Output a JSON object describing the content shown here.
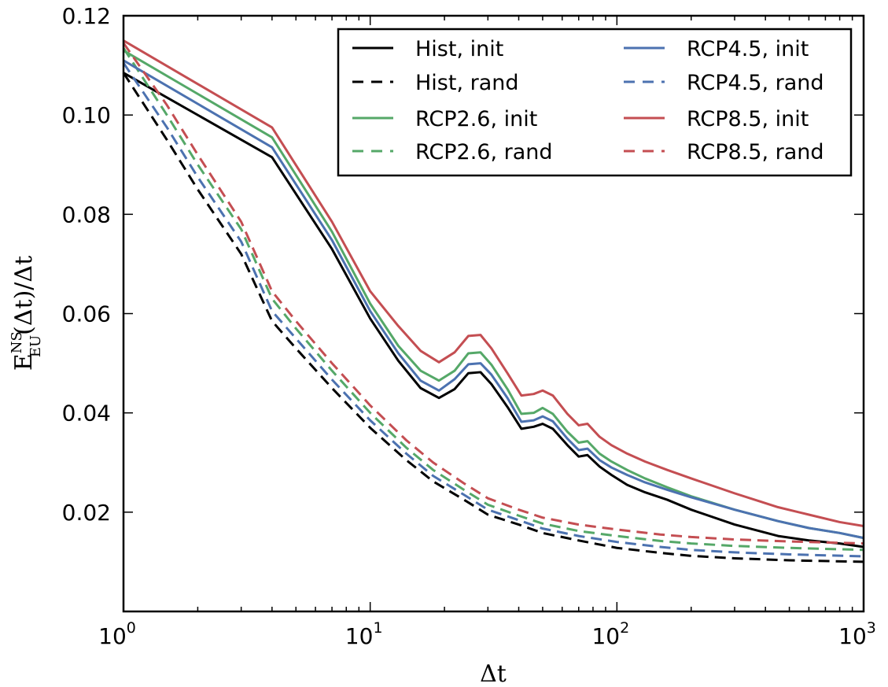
{
  "chart_data": {
    "type": "line",
    "xscale": "log",
    "xlim": [
      1,
      1000
    ],
    "ylim": [
      0,
      0.12
    ],
    "grid": false,
    "legend_position": "top-right",
    "legend_columns": 2,
    "x_tick_labels": [
      {
        "value": 1,
        "base": "10",
        "exp": "0"
      },
      {
        "value": 10,
        "base": "10",
        "exp": "1"
      },
      {
        "value": 100,
        "base": "10",
        "exp": "2"
      },
      {
        "value": 1000,
        "base": "10",
        "exp": "3"
      }
    ],
    "y_ticks": [
      {
        "value": 0.02,
        "label": "0.02"
      },
      {
        "value": 0.04,
        "label": "0.04"
      },
      {
        "value": 0.06,
        "label": "0.06"
      },
      {
        "value": 0.08,
        "label": "0.08"
      },
      {
        "value": 0.1,
        "label": "0.10"
      },
      {
        "value": 0.12,
        "label": "0.12"
      }
    ],
    "xlabel": "Δt",
    "ylabel": {
      "main": "E",
      "sup": "NS",
      "sub": "EU",
      "rest": "(Δt)/Δt"
    },
    "series": [
      {
        "name": "Hist, init",
        "color": "#000000",
        "dash": "solid",
        "points": [
          [
            1,
            0.1085
          ],
          [
            4,
            0.0915
          ],
          [
            7,
            0.073
          ],
          [
            10,
            0.059
          ],
          [
            13,
            0.0505
          ],
          [
            16,
            0.045
          ],
          [
            19,
            0.043
          ],
          [
            22,
            0.0448
          ],
          [
            25,
            0.048
          ],
          [
            28,
            0.0482
          ],
          [
            31,
            0.0458
          ],
          [
            36,
            0.0412
          ],
          [
            41,
            0.0368
          ],
          [
            46,
            0.0372
          ],
          [
            50,
            0.0378
          ],
          [
            55,
            0.0368
          ],
          [
            63,
            0.0335
          ],
          [
            70,
            0.0312
          ],
          [
            76,
            0.0315
          ],
          [
            85,
            0.0292
          ],
          [
            95,
            0.0275
          ],
          [
            110,
            0.0255
          ],
          [
            130,
            0.024
          ],
          [
            160,
            0.0225
          ],
          [
            200,
            0.0205
          ],
          [
            300,
            0.0175
          ],
          [
            450,
            0.0152
          ],
          [
            600,
            0.0143
          ],
          [
            800,
            0.0137
          ],
          [
            1000,
            0.013
          ]
        ]
      },
      {
        "name": "Hist, rand",
        "color": "#000000",
        "dash": "dashed",
        "points": [
          [
            1,
            0.1085
          ],
          [
            1.5,
            0.095
          ],
          [
            2,
            0.085
          ],
          [
            3,
            0.072
          ],
          [
            4,
            0.0585
          ],
          [
            5,
            0.053
          ],
          [
            7,
            0.045
          ],
          [
            10,
            0.037
          ],
          [
            14,
            0.0305
          ],
          [
            18,
            0.0262
          ],
          [
            24,
            0.0225
          ],
          [
            30,
            0.0195
          ],
          [
            40,
            0.0175
          ],
          [
            50,
            0.0158
          ],
          [
            70,
            0.0143
          ],
          [
            100,
            0.0128
          ],
          [
            150,
            0.0118
          ],
          [
            200,
            0.0112
          ],
          [
            300,
            0.0107
          ],
          [
            500,
            0.0103
          ],
          [
            1000,
            0.01
          ]
        ]
      },
      {
        "name": "RCP2.6, init",
        "color": "#55a868",
        "dash": "solid",
        "points": [
          [
            1,
            0.113
          ],
          [
            4,
            0.0955
          ],
          [
            7,
            0.0765
          ],
          [
            10,
            0.062
          ],
          [
            13,
            0.0535
          ],
          [
            16,
            0.0485
          ],
          [
            19,
            0.0465
          ],
          [
            22,
            0.0485
          ],
          [
            25,
            0.052
          ],
          [
            28,
            0.0522
          ],
          [
            31,
            0.0497
          ],
          [
            36,
            0.0448
          ],
          [
            41,
            0.0398
          ],
          [
            46,
            0.04
          ],
          [
            50,
            0.041
          ],
          [
            55,
            0.0398
          ],
          [
            63,
            0.0362
          ],
          [
            70,
            0.034
          ],
          [
            76,
            0.0343
          ],
          [
            85,
            0.0318
          ],
          [
            95,
            0.0302
          ],
          [
            110,
            0.0285
          ],
          [
            130,
            0.0268
          ],
          [
            160,
            0.025
          ],
          [
            200,
            0.0232
          ],
          [
            300,
            0.0205
          ],
          [
            450,
            0.0182
          ],
          [
            600,
            0.0168
          ],
          [
            800,
            0.0158
          ],
          [
            1000,
            0.0148
          ]
        ]
      },
      {
        "name": "RCP2.6, rand",
        "color": "#55a868",
        "dash": "dashed",
        "points": [
          [
            1,
            0.1135
          ],
          [
            1.5,
            0.1
          ],
          [
            2,
            0.09
          ],
          [
            3,
            0.077
          ],
          [
            4,
            0.063
          ],
          [
            5,
            0.057
          ],
          [
            7,
            0.0485
          ],
          [
            10,
            0.04
          ],
          [
            14,
            0.033
          ],
          [
            18,
            0.0285
          ],
          [
            24,
            0.0245
          ],
          [
            30,
            0.0215
          ],
          [
            40,
            0.0193
          ],
          [
            50,
            0.0177
          ],
          [
            70,
            0.0162
          ],
          [
            100,
            0.0152
          ],
          [
            150,
            0.0142
          ],
          [
            200,
            0.0137
          ],
          [
            300,
            0.0132
          ],
          [
            500,
            0.0128
          ],
          [
            1000,
            0.0124
          ]
        ]
      },
      {
        "name": "RCP4.5, init",
        "color": "#4c72b0",
        "dash": "solid",
        "points": [
          [
            1,
            0.111
          ],
          [
            4,
            0.0935
          ],
          [
            7,
            0.0748
          ],
          [
            10,
            0.0605
          ],
          [
            13,
            0.052
          ],
          [
            16,
            0.0465
          ],
          [
            19,
            0.0445
          ],
          [
            22,
            0.0468
          ],
          [
            25,
            0.0498
          ],
          [
            28,
            0.05
          ],
          [
            31,
            0.0477
          ],
          [
            36,
            0.043
          ],
          [
            41,
            0.0382
          ],
          [
            46,
            0.0385
          ],
          [
            50,
            0.0393
          ],
          [
            55,
            0.0383
          ],
          [
            63,
            0.0348
          ],
          [
            70,
            0.0325
          ],
          [
            76,
            0.0328
          ],
          [
            85,
            0.0305
          ],
          [
            95,
            0.029
          ],
          [
            110,
            0.0275
          ],
          [
            130,
            0.026
          ],
          [
            160,
            0.0245
          ],
          [
            200,
            0.023
          ],
          [
            300,
            0.0205
          ],
          [
            450,
            0.0182
          ],
          [
            600,
            0.0168
          ],
          [
            800,
            0.0158
          ],
          [
            1000,
            0.0148
          ]
        ]
      },
      {
        "name": "RCP4.5, rand",
        "color": "#4c72b0",
        "dash": "dashed",
        "points": [
          [
            1,
            0.1105
          ],
          [
            1.5,
            0.0975
          ],
          [
            2,
            0.0875
          ],
          [
            3,
            0.0745
          ],
          [
            4,
            0.0605
          ],
          [
            5,
            0.055
          ],
          [
            7,
            0.0467
          ],
          [
            10,
            0.0385
          ],
          [
            14,
            0.0318
          ],
          [
            18,
            0.0273
          ],
          [
            24,
            0.0235
          ],
          [
            30,
            0.0205
          ],
          [
            40,
            0.0184
          ],
          [
            50,
            0.0167
          ],
          [
            70,
            0.0152
          ],
          [
            100,
            0.014
          ],
          [
            150,
            0.013
          ],
          [
            200,
            0.0124
          ],
          [
            300,
            0.0119
          ],
          [
            500,
            0.0115
          ],
          [
            1000,
            0.0111
          ]
        ]
      },
      {
        "name": "RCP8.5, init",
        "color": "#c44e52",
        "dash": "solid",
        "points": [
          [
            1,
            0.115
          ],
          [
            4,
            0.0975
          ],
          [
            7,
            0.0785
          ],
          [
            10,
            0.0645
          ],
          [
            13,
            0.0575
          ],
          [
            16,
            0.0525
          ],
          [
            19,
            0.0502
          ],
          [
            22,
            0.0522
          ],
          [
            25,
            0.0555
          ],
          [
            28,
            0.0557
          ],
          [
            31,
            0.053
          ],
          [
            36,
            0.048
          ],
          [
            41,
            0.0435
          ],
          [
            46,
            0.0438
          ],
          [
            50,
            0.0445
          ],
          [
            55,
            0.0435
          ],
          [
            63,
            0.0398
          ],
          [
            70,
            0.0375
          ],
          [
            76,
            0.0378
          ],
          [
            85,
            0.0352
          ],
          [
            95,
            0.0335
          ],
          [
            110,
            0.0318
          ],
          [
            130,
            0.0302
          ],
          [
            160,
            0.0285
          ],
          [
            200,
            0.0268
          ],
          [
            300,
            0.0238
          ],
          [
            450,
            0.021
          ],
          [
            600,
            0.0195
          ],
          [
            800,
            0.018
          ],
          [
            1000,
            0.0172
          ]
        ]
      },
      {
        "name": "RCP8.5, rand",
        "color": "#c44e52",
        "dash": "dashed",
        "points": [
          [
            1,
            0.1145
          ],
          [
            1.5,
            0.102
          ],
          [
            2,
            0.092
          ],
          [
            3,
            0.0785
          ],
          [
            4,
            0.0645
          ],
          [
            5,
            0.0585
          ],
          [
            7,
            0.05
          ],
          [
            10,
            0.0415
          ],
          [
            14,
            0.0345
          ],
          [
            18,
            0.03
          ],
          [
            24,
            0.0258
          ],
          [
            30,
            0.0228
          ],
          [
            40,
            0.0205
          ],
          [
            50,
            0.0189
          ],
          [
            70,
            0.0175
          ],
          [
            100,
            0.0165
          ],
          [
            150,
            0.0155
          ],
          [
            200,
            0.015
          ],
          [
            300,
            0.0145
          ],
          [
            500,
            0.0141
          ],
          [
            1000,
            0.0137
          ]
        ]
      }
    ]
  }
}
